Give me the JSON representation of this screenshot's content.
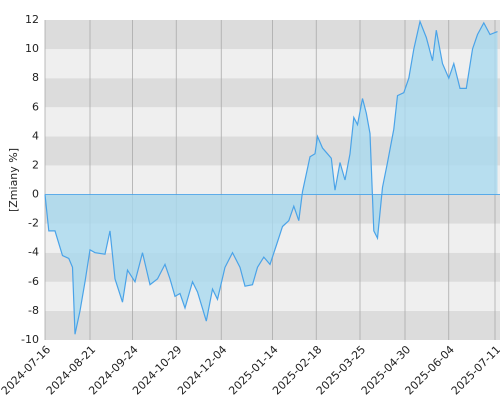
{
  "chart_data": {
    "type": "area",
    "y_label": "[Zmiany %]",
    "x": [
      "2024-07-16",
      "2024-07-19",
      "2024-07-24",
      "2024-07-30",
      "2024-08-04",
      "2024-08-07",
      "2024-08-09",
      "2024-08-13",
      "2024-08-17",
      "2024-08-21",
      "2024-08-25",
      "2024-09-02",
      "2024-09-06",
      "2024-09-10",
      "2024-09-16",
      "2024-09-20",
      "2024-09-26",
      "2024-10-02",
      "2024-10-08",
      "2024-10-14",
      "2024-10-20",
      "2024-10-24",
      "2024-10-28",
      "2024-11-01",
      "2024-11-05",
      "2024-11-11",
      "2024-11-15",
      "2024-11-22",
      "2024-11-27",
      "2024-12-01",
      "2024-12-07",
      "2024-12-13",
      "2024-12-19",
      "2024-12-23",
      "2024-12-29",
      "2025-01-02",
      "2025-01-07",
      "2025-01-12",
      "2025-01-17",
      "2025-01-22",
      "2025-01-27",
      "2025-01-31",
      "2025-02-04",
      "2025-02-07",
      "2025-02-13",
      "2025-02-17",
      "2025-02-19",
      "2025-02-23",
      "2025-02-27",
      "2025-03-02",
      "2025-03-05",
      "2025-03-09",
      "2025-03-13",
      "2025-03-17",
      "2025-03-20",
      "2025-03-23",
      "2025-03-27",
      "2025-03-30",
      "2025-04-02",
      "2025-04-05",
      "2025-04-08",
      "2025-04-12",
      "2025-04-16",
      "2025-04-21",
      "2025-04-24",
      "2025-04-29",
      "2025-05-03",
      "2025-05-07",
      "2025-05-12",
      "2025-05-17",
      "2025-05-22",
      "2025-05-25",
      "2025-05-30",
      "2025-06-04",
      "2025-06-08",
      "2025-06-13",
      "2025-06-18",
      "2025-06-23",
      "2025-06-27",
      "2025-07-02",
      "2025-07-07",
      "2025-07-13"
    ],
    "series": [
      {
        "color": "#4aa3e8",
        "fill": "#a9d9ef",
        "values": [
          0,
          -2.5,
          -2.5,
          -4.2,
          -4.4,
          -5.0,
          -9.6,
          -8,
          -6,
          -3.8,
          -4.0,
          -4.1,
          -2.5,
          -5.8,
          -7.4,
          -5.2,
          -6,
          -4,
          -6.2,
          -5.8,
          -4.8,
          -5.8,
          -7.0,
          -6.8,
          -7.8,
          -6,
          -6.7,
          -8.7,
          -6.5,
          -7.2,
          -5,
          -4,
          -5,
          -6.3,
          -6.2,
          -5,
          -4.3,
          -4.8,
          -3.5,
          -2.2,
          -1.8,
          -0.8,
          -1.8,
          0.2,
          2.6,
          2.8,
          4.0,
          3.2,
          2.8,
          2.5,
          0.3,
          2.2,
          1.0,
          2.8,
          5.3,
          4.8,
          6.6,
          5.6,
          4.2,
          -2.5,
          -3.0,
          0.5,
          2.2,
          4.5,
          6.8,
          7.0,
          8.0,
          10.0,
          11.9,
          10.8,
          9.2,
          11.3,
          9.0,
          8.0,
          9.0,
          7.3,
          7.3,
          10.0,
          11.0,
          11.8,
          11.0,
          11.2
        ]
      }
    ],
    "xlim": [
      "2024-07-16",
      "2025-07-15"
    ],
    "xticks": [
      "2024-07-16",
      "2024-08-21",
      "2024-09-24",
      "2024-10-29",
      "2024-12-04",
      "2025-01-14",
      "2025-02-18",
      "2025-03-25",
      "2025-04-30",
      "2025-06-04",
      "2025-07-11"
    ],
    "ylim": [
      -10,
      12
    ],
    "yticks": [
      -10,
      -8,
      -6,
      -4,
      -2,
      0,
      2,
      4,
      6,
      8,
      10,
      12
    ],
    "grid": true,
    "band_colors": [
      "#dcdcdc",
      "#efefef"
    ]
  }
}
